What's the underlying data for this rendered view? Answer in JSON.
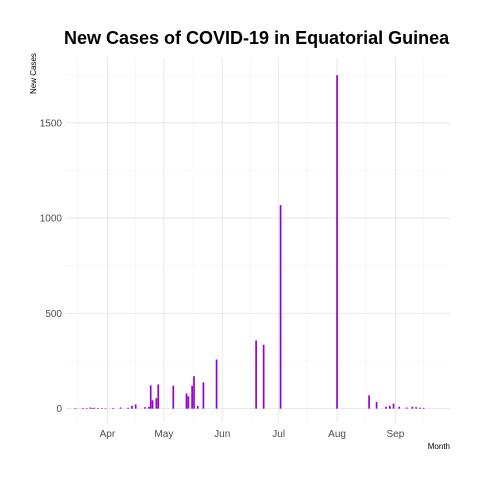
{
  "chart_data": {
    "type": "bar",
    "title": "New Cases of COVID-19 in Equatorial Guinea",
    "xlabel": "Month",
    "ylabel": "New Cases",
    "bar_color": "#9400D3",
    "grid": true,
    "legend": "none",
    "x_range": [
      "2020-03-10",
      "2020-09-30"
    ],
    "ylim": [
      -70,
      1840
    ],
    "y_ticks": [
      0,
      500,
      1000,
      1500
    ],
    "x_ticks": [
      {
        "label": "Apr",
        "date": "2020-04-01"
      },
      {
        "label": "May",
        "date": "2020-05-01"
      },
      {
        "label": "Jun",
        "date": "2020-06-01"
      },
      {
        "label": "Jul",
        "date": "2020-07-01"
      },
      {
        "label": "Aug",
        "date": "2020-08-01"
      },
      {
        "label": "Sep",
        "date": "2020-09-01"
      }
    ],
    "x_minor_ticks": [
      "2020-03-16",
      "2020-04-16",
      "2020-05-16",
      "2020-06-16",
      "2020-07-16",
      "2020-08-16",
      "2020-09-16"
    ],
    "x": [
      "2020-03-15",
      "2020-03-19",
      "2020-03-21",
      "2020-03-23",
      "2020-03-24",
      "2020-03-25",
      "2020-03-27",
      "2020-03-29",
      "2020-03-31",
      "2020-04-04",
      "2020-04-08",
      "2020-04-12",
      "2020-04-14",
      "2020-04-16",
      "2020-04-21",
      "2020-04-23",
      "2020-04-24",
      "2020-04-25",
      "2020-04-27",
      "2020-04-28",
      "2020-05-06",
      "2020-05-13",
      "2020-05-14",
      "2020-05-16",
      "2020-05-17",
      "2020-05-19",
      "2020-05-22",
      "2020-05-29",
      "2020-06-19",
      "2020-06-23",
      "2020-07-02",
      "2020-08-01",
      "2020-08-18",
      "2020-08-22",
      "2020-08-27",
      "2020-08-29",
      "2020-08-31",
      "2020-09-03",
      "2020-09-07",
      "2020-09-10",
      "2020-09-12",
      "2020-09-14",
      "2020-09-16"
    ],
    "values": [
      3,
      4,
      2,
      6,
      3,
      5,
      4,
      3,
      2,
      4,
      6,
      5,
      15,
      22,
      8,
      10,
      122,
      44,
      55,
      127,
      120,
      80,
      65,
      120,
      170,
      14,
      138,
      258,
      358,
      335,
      1068,
      1750,
      70,
      35,
      10,
      15,
      26,
      10,
      6,
      10,
      8,
      5,
      4
    ]
  }
}
